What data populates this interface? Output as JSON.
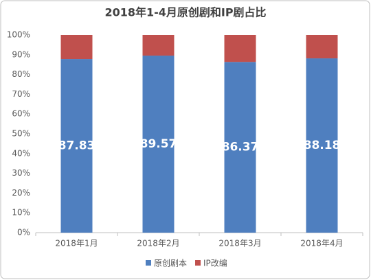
{
  "chart_data": {
    "type": "stacked_bar",
    "title": "2018年1-4月原创剧和IP剧占比",
    "categories": [
      "2018年1月",
      "2018年2月",
      "2018年3月",
      "2018年4月"
    ],
    "series": [
      {
        "name": "原创剧本",
        "color": "#4f7fbf",
        "values": [
          87.83,
          89.57,
          86.37,
          88.18
        ]
      },
      {
        "name": "IP改编",
        "color": "#c0504d",
        "values": [
          12.17,
          10.43,
          13.63,
          11.82
        ]
      }
    ],
    "ylim": [
      0,
      100
    ],
    "yticks": [
      {
        "value": 0,
        "label": "0%"
      },
      {
        "value": 10,
        "label": "10%"
      },
      {
        "value": 20,
        "label": "20%"
      },
      {
        "value": 30,
        "label": "30%"
      },
      {
        "value": 40,
        "label": "40%"
      },
      {
        "value": 50,
        "label": "50%"
      },
      {
        "value": 60,
        "label": "60%"
      },
      {
        "value": 70,
        "label": "70%"
      },
      {
        "value": 80,
        "label": "80%"
      },
      {
        "value": 90,
        "label": "90%"
      },
      {
        "value": 100,
        "label": "100%"
      }
    ],
    "grid": false,
    "data_labels_series": 0,
    "legend": "bottom"
  }
}
